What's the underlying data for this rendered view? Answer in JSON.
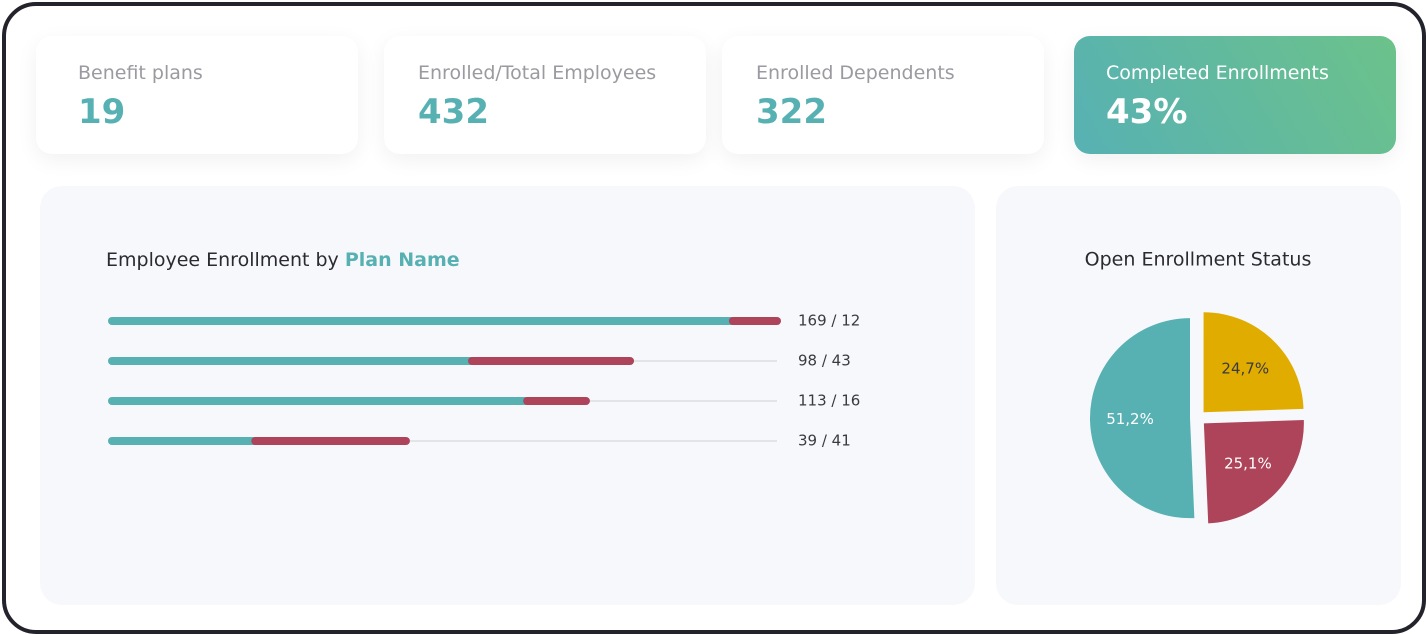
{
  "cards": [
    {
      "label": "Benefit plans",
      "value": "19"
    },
    {
      "label": "Enrolled/Total Employees",
      "value": "432"
    },
    {
      "label": "Enrolled Dependents",
      "value": "322"
    },
    {
      "label": "Completed Enrollments",
      "value": "43%"
    }
  ],
  "chart_data": [
    {
      "type": "hbar-stacked",
      "title": "Employee Enrollment by",
      "title_emphasis": "Plan Name",
      "series": [
        {
          "color": "#57b1b3",
          "values": [
            169,
            98,
            113,
            39
          ]
        },
        {
          "color": "#ad4459",
          "values": [
            12,
            43,
            16,
            41
          ]
        }
      ],
      "value_labels": [
        "169 / 12",
        "98 / 43",
        "113 / 16",
        "39 / 41"
      ]
    },
    {
      "type": "pie",
      "title": "Open Enrollment Status",
      "values": [
        24.7,
        25.1,
        51.2
      ],
      "value_labels": [
        "24,7%",
        "25,1%",
        "51,2%"
      ],
      "colors": [
        "#e0ac00",
        "#ad4459",
        "#57b1b3"
      ]
    }
  ]
}
